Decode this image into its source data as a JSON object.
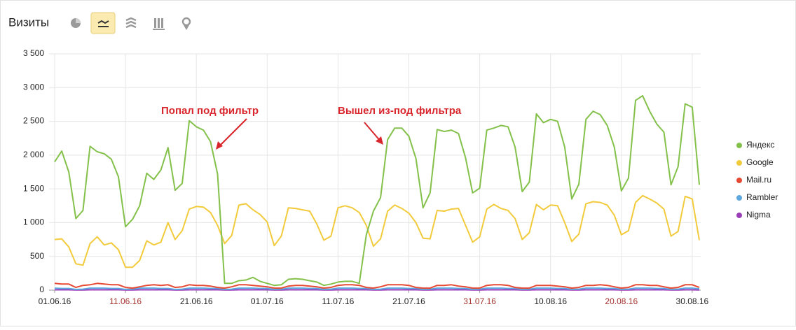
{
  "header": {
    "title": "Визиты"
  },
  "chart_data": {
    "type": "line",
    "categories": [
      "01.06.16",
      null,
      null,
      null,
      null,
      null,
      null,
      null,
      null,
      null,
      "11.06.16",
      null,
      null,
      null,
      null,
      null,
      null,
      null,
      null,
      null,
      "21.06.16",
      null,
      null,
      null,
      null,
      null,
      null,
      null,
      null,
      null,
      "01.07.16",
      null,
      null,
      null,
      null,
      null,
      null,
      null,
      null,
      null,
      "11.07.16",
      null,
      null,
      null,
      null,
      null,
      null,
      null,
      null,
      null,
      "21.07.16",
      null,
      null,
      null,
      null,
      null,
      null,
      null,
      null,
      null,
      "31.07.16",
      null,
      null,
      null,
      null,
      null,
      null,
      null,
      null,
      null,
      "10.08.16",
      null,
      null,
      null,
      null,
      null,
      null,
      null,
      null,
      null,
      "20.08.16",
      null,
      null,
      null,
      null,
      null,
      null,
      null,
      null,
      null,
      "30.08.16",
      null
    ],
    "weekend_label_color": "#a3332e",
    "ylim": [
      0,
      3500
    ],
    "yticks": [
      0,
      500,
      {
        "value": 1000,
        "label": "1 000"
      },
      {
        "value": 1500,
        "label": "1 500"
      },
      {
        "value": 2000,
        "label": "2 000"
      },
      {
        "value": 2500,
        "label": "2 500"
      },
      {
        "value": 3000,
        "label": "3 000"
      },
      {
        "value": 3500,
        "label": "3 500"
      }
    ],
    "grid": true,
    "legend": "right",
    "annotations": [
      {
        "text": "Попал под фильтр"
      },
      {
        "text": "Вышел из-под фильтра"
      }
    ],
    "series": [
      {
        "name": "Яндекс",
        "color": "#84c14b",
        "values": [
          1900,
          2060,
          1750,
          1060,
          1180,
          2130,
          2050,
          2020,
          1940,
          1680,
          940,
          1050,
          1250,
          1730,
          1640,
          1780,
          2110,
          1480,
          1580,
          2510,
          2420,
          2370,
          2200,
          1720,
          100,
          100,
          140,
          150,
          190,
          130,
          100,
          70,
          80,
          160,
          170,
          160,
          140,
          120,
          70,
          90,
          120,
          130,
          130,
          100,
          820,
          1170,
          1370,
          2230,
          2400,
          2400,
          2280,
          1950,
          1220,
          1440,
          2380,
          2350,
          2370,
          2320,
          1960,
          1440,
          1510,
          2370,
          2400,
          2440,
          2420,
          2120,
          1460,
          1600,
          2610,
          2480,
          2530,
          2500,
          2120,
          1350,
          1570,
          2530,
          2650,
          2600,
          2440,
          2120,
          1470,
          1660,
          2810,
          2880,
          2650,
          2460,
          2340,
          1560,
          1830,
          2760,
          2710,
          1560
        ]
      },
      {
        "name": "Google",
        "color": "#f2cb3d",
        "values": [
          750,
          760,
          640,
          390,
          370,
          690,
          790,
          670,
          700,
          600,
          340,
          340,
          440,
          730,
          670,
          710,
          1000,
          750,
          880,
          1200,
          1240,
          1230,
          1150,
          960,
          690,
          810,
          1260,
          1280,
          1190,
          1120,
          1010,
          660,
          800,
          1220,
          1210,
          1190,
          1170,
          980,
          740,
          800,
          1220,
          1250,
          1220,
          1150,
          960,
          650,
          760,
          1170,
          1260,
          1210,
          1140,
          1000,
          770,
          760,
          1180,
          1170,
          1200,
          1210,
          960,
          710,
          790,
          1200,
          1270,
          1210,
          1180,
          1060,
          750,
          850,
          1270,
          1190,
          1260,
          1250,
          1000,
          720,
          830,
          1280,
          1310,
          1300,
          1260,
          1110,
          820,
          880,
          1300,
          1400,
          1350,
          1290,
          1200,
          800,
          870,
          1390,
          1350,
          740
        ]
      },
      {
        "name": "Mail.ru",
        "color": "#e64a35",
        "values": [
          100,
          90,
          90,
          40,
          70,
          80,
          100,
          90,
          80,
          80,
          40,
          30,
          50,
          70,
          80,
          70,
          80,
          40,
          50,
          80,
          70,
          70,
          60,
          40,
          30,
          50,
          80,
          80,
          70,
          60,
          50,
          30,
          30,
          60,
          70,
          70,
          60,
          50,
          30,
          40,
          70,
          80,
          80,
          70,
          40,
          30,
          50,
          80,
          80,
          80,
          70,
          40,
          30,
          30,
          70,
          70,
          80,
          60,
          50,
          30,
          30,
          70,
          80,
          80,
          70,
          40,
          30,
          30,
          70,
          70,
          70,
          60,
          50,
          30,
          40,
          70,
          70,
          80,
          70,
          50,
          30,
          40,
          80,
          80,
          70,
          70,
          50,
          30,
          40,
          80,
          80,
          40
        ]
      },
      {
        "name": "Rambler",
        "color": "#5ba7e0",
        "values": [
          30,
          25,
          25,
          10,
          15,
          30,
          30,
          30,
          25,
          25,
          10,
          15,
          30,
          30,
          30,
          25,
          25,
          10,
          15,
          30,
          30,
          30,
          25,
          25,
          10,
          15,
          30,
          30,
          30,
          25,
          25,
          10,
          15,
          30,
          30,
          30,
          25,
          25,
          10,
          15,
          30,
          30,
          30,
          25,
          25,
          10,
          15,
          30,
          30,
          30,
          25,
          25,
          10,
          15,
          30,
          30,
          30,
          25,
          25,
          10,
          15,
          30,
          30,
          30,
          25,
          25,
          10,
          15,
          30,
          30,
          30,
          25,
          25,
          10,
          15,
          30,
          30,
          30,
          25,
          25,
          10,
          15,
          30,
          30,
          30,
          25,
          25,
          10,
          15,
          30,
          30,
          20
        ]
      },
      {
        "name": "Nigma",
        "color": "#9b3fb8",
        "values": [
          5,
          5,
          5,
          3,
          3,
          5,
          5,
          5,
          5,
          5,
          3,
          3,
          5,
          5,
          5,
          5,
          5,
          3,
          3,
          5,
          5,
          5,
          5,
          5,
          3,
          3,
          5,
          5,
          5,
          5,
          5,
          3,
          3,
          5,
          5,
          5,
          5,
          5,
          3,
          3,
          5,
          5,
          5,
          5,
          5,
          3,
          3,
          5,
          5,
          5,
          5,
          5,
          3,
          3,
          5,
          5,
          5,
          5,
          5,
          3,
          3,
          5,
          5,
          5,
          5,
          5,
          3,
          3,
          5,
          5,
          5,
          5,
          5,
          3,
          3,
          5,
          5,
          5,
          5,
          5,
          3,
          3,
          5,
          5,
          5,
          5,
          5,
          3,
          3,
          5,
          5,
          3
        ]
      }
    ]
  }
}
